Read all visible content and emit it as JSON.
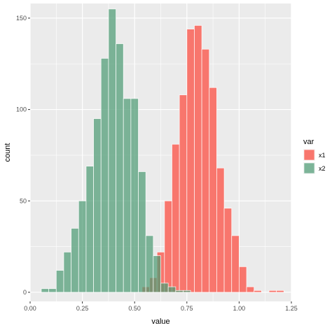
{
  "chart_data": {
    "type": "histogram",
    "xlabel": "value",
    "ylabel": "count",
    "xlim": [
      0.0,
      1.25
    ],
    "ylim": [
      -5,
      158
    ],
    "x_ticks": [
      "0.00",
      "0.25",
      "0.50",
      "0.75",
      "1.00",
      "1.25"
    ],
    "x_tick_values": [
      0.0,
      0.25,
      0.5,
      0.75,
      1.0,
      1.25
    ],
    "y_ticks": [
      "0",
      "50",
      "100",
      "150"
    ],
    "y_tick_values": [
      0,
      50,
      100,
      150
    ],
    "grid": true,
    "bin_width": 0.0357,
    "legend": {
      "title": "var",
      "placement": "right",
      "entries": [
        "x1",
        "x2"
      ]
    },
    "series": [
      {
        "name": "x1",
        "color": "#F8766D",
        "opacity": 1.0,
        "bins": [
          {
            "x": 0.5536,
            "count": 3
          },
          {
            "x": 0.5893,
            "count": 8
          },
          {
            "x": 0.625,
            "count": 22
          },
          {
            "x": 0.6607,
            "count": 50
          },
          {
            "x": 0.6964,
            "count": 81
          },
          {
            "x": 0.7321,
            "count": 108
          },
          {
            "x": 0.7679,
            "count": 144
          },
          {
            "x": 0.8036,
            "count": 146
          },
          {
            "x": 0.8393,
            "count": 133
          },
          {
            "x": 0.875,
            "count": 112
          },
          {
            "x": 0.9107,
            "count": 68
          },
          {
            "x": 0.9464,
            "count": 46
          },
          {
            "x": 0.9821,
            "count": 31
          },
          {
            "x": 1.0179,
            "count": 14
          },
          {
            "x": 1.0536,
            "count": 3
          },
          {
            "x": 1.0893,
            "count": 1
          },
          {
            "x": 1.1607,
            "count": 1
          },
          {
            "x": 1.1964,
            "count": 1
          }
        ]
      },
      {
        "name": "x2",
        "color": "#4E9B74",
        "opacity": 0.72,
        "bins": [
          {
            "x": 0.0714,
            "count": 2
          },
          {
            "x": 0.1071,
            "count": 2
          },
          {
            "x": 0.1429,
            "count": 12
          },
          {
            "x": 0.1786,
            "count": 22
          },
          {
            "x": 0.2143,
            "count": 35
          },
          {
            "x": 0.25,
            "count": 50
          },
          {
            "x": 0.2857,
            "count": 69
          },
          {
            "x": 0.3214,
            "count": 95
          },
          {
            "x": 0.3571,
            "count": 128
          },
          {
            "x": 0.3929,
            "count": 155
          },
          {
            "x": 0.4286,
            "count": 136
          },
          {
            "x": 0.4643,
            "count": 106
          },
          {
            "x": 0.5,
            "count": 106
          },
          {
            "x": 0.5357,
            "count": 66
          },
          {
            "x": 0.5714,
            "count": 31
          },
          {
            "x": 0.6071,
            "count": 20
          },
          {
            "x": 0.6429,
            "count": 5
          },
          {
            "x": 0.6786,
            "count": 3
          },
          {
            "x": 0.7143,
            "count": 1
          },
          {
            "x": 0.75,
            "count": 1
          }
        ]
      }
    ]
  }
}
